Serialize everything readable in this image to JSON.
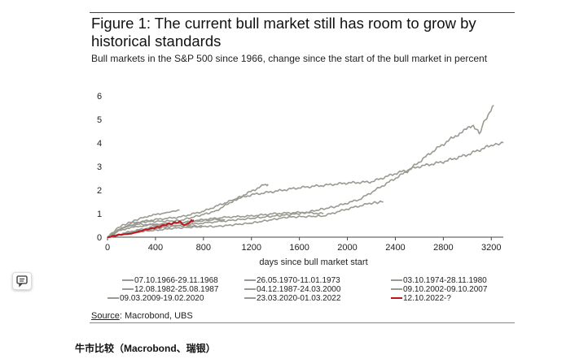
{
  "chart_data": {
    "type": "line",
    "title": "Figure 1: The current bull market still has room to grow by historical standards",
    "subtitle": "Bull markets in the S&P 500 since 1966, change since the start of the bull market in percent",
    "xlabel": "days since bull market start",
    "ylabel": "",
    "xlim": [
      0,
      3300
    ],
    "ylim": [
      0,
      6
    ],
    "x_ticks": [
      0,
      400,
      800,
      1200,
      1600,
      2000,
      2400,
      2800,
      3200
    ],
    "y_ticks": [
      0,
      1,
      2,
      3,
      4,
      5,
      6
    ],
    "grid": false,
    "legend_position": "bottom",
    "series": [
      {
        "name": "07.10.1966-29.11.1968",
        "color": "#9a9a92",
        "points": [
          [
            0,
            0
          ],
          [
            150,
            0.15
          ],
          [
            300,
            0.25
          ],
          [
            420,
            0.3
          ],
          [
            550,
            0.38
          ],
          [
            790,
            0.45
          ]
        ]
      },
      {
        "name": "26.05.1970-11.01.1973",
        "color": "#9a9a92",
        "points": [
          [
            0,
            0
          ],
          [
            100,
            0.3
          ],
          [
            250,
            0.45
          ],
          [
            400,
            0.55
          ],
          [
            600,
            0.6
          ],
          [
            900,
            0.75
          ],
          [
            980,
            0.74
          ]
        ]
      },
      {
        "name": "03.10.1974-28.11.1980",
        "color": "#9a9a92",
        "points": [
          [
            0,
            0
          ],
          [
            120,
            0.4
          ],
          [
            250,
            0.55
          ],
          [
            500,
            0.5
          ],
          [
            900,
            0.45
          ],
          [
            1200,
            0.6
          ],
          [
            1500,
            0.85
          ],
          [
            1800,
            0.9
          ],
          [
            2000,
            1.2
          ],
          [
            2200,
            1.45
          ],
          [
            2300,
            1.5
          ]
        ]
      },
      {
        "name": "12.08.1982-25.08.1987",
        "color": "#9a9a92",
        "points": [
          [
            0,
            0
          ],
          [
            150,
            0.45
          ],
          [
            300,
            0.65
          ],
          [
            600,
            0.7
          ],
          [
            900,
            1.1
          ],
          [
            1100,
            1.7
          ],
          [
            1300,
            2.2
          ],
          [
            1340,
            2.25
          ]
        ]
      },
      {
        "name": "04.12.1987-24.03.2000",
        "color": "#9a9a92",
        "points": [
          [
            0,
            0
          ],
          [
            300,
            0.3
          ],
          [
            600,
            0.5
          ],
          [
            800,
            0.6
          ],
          [
            1000,
            0.7
          ],
          [
            1300,
            0.85
          ],
          [
            1600,
            1.0
          ],
          [
            1900,
            1.3
          ],
          [
            2100,
            1.6
          ],
          [
            2300,
            2.2
          ],
          [
            2500,
            2.8
          ],
          [
            2700,
            3.6
          ],
          [
            2900,
            4.3
          ],
          [
            3050,
            4.75
          ],
          [
            3100,
            4.4
          ],
          [
            3150,
            5.0
          ],
          [
            3220,
            5.6
          ]
        ]
      },
      {
        "name": "09.10.2002-09.10.2007",
        "color": "#9a9a92",
        "points": [
          [
            0,
            0
          ],
          [
            200,
            0.25
          ],
          [
            400,
            0.45
          ],
          [
            600,
            0.6
          ],
          [
            800,
            0.75
          ],
          [
            1000,
            0.85
          ],
          [
            1200,
            0.9
          ],
          [
            1400,
            1.0
          ],
          [
            1600,
            1.05
          ],
          [
            1800,
            1.0
          ]
        ]
      },
      {
        "name": "09.03.2009-19.02.2020",
        "color": "#9a9a92",
        "points": [
          [
            0,
            0
          ],
          [
            200,
            0.6
          ],
          [
            400,
            0.75
          ],
          [
            600,
            0.85
          ],
          [
            800,
            1.1
          ],
          [
            1000,
            1.5
          ],
          [
            1200,
            1.8
          ],
          [
            1400,
            1.95
          ],
          [
            1600,
            2.1
          ],
          [
            1800,
            2.2
          ],
          [
            2000,
            2.3
          ],
          [
            2200,
            2.35
          ],
          [
            2400,
            2.7
          ],
          [
            2600,
            3.0
          ],
          [
            2800,
            3.2
          ],
          [
            3000,
            3.5
          ],
          [
            3200,
            3.9
          ],
          [
            3300,
            4.0
          ]
        ]
      },
      {
        "name": "23.03.2020-01.03.2022",
        "color": "#9a9a92",
        "points": [
          [
            0,
            0
          ],
          [
            100,
            0.45
          ],
          [
            200,
            0.65
          ],
          [
            300,
            0.85
          ],
          [
            450,
            1.0
          ],
          [
            550,
            1.1
          ],
          [
            600,
            1.15
          ]
        ]
      },
      {
        "name": "12.10.2022-?",
        "color": "#c0141b",
        "points": [
          [
            0,
            0
          ],
          [
            100,
            0.1
          ],
          [
            200,
            0.15
          ],
          [
            300,
            0.3
          ],
          [
            400,
            0.4
          ],
          [
            500,
            0.55
          ],
          [
            600,
            0.65
          ],
          [
            650,
            0.5
          ],
          [
            700,
            0.7
          ],
          [
            720,
            0.72
          ]
        ]
      }
    ]
  },
  "source": {
    "label": "Source",
    "text": ": Macrobond, UBS"
  },
  "caption": "牛市比较（Macrobond、瑞银）",
  "feedback_icon": "chat-bubble-icon"
}
